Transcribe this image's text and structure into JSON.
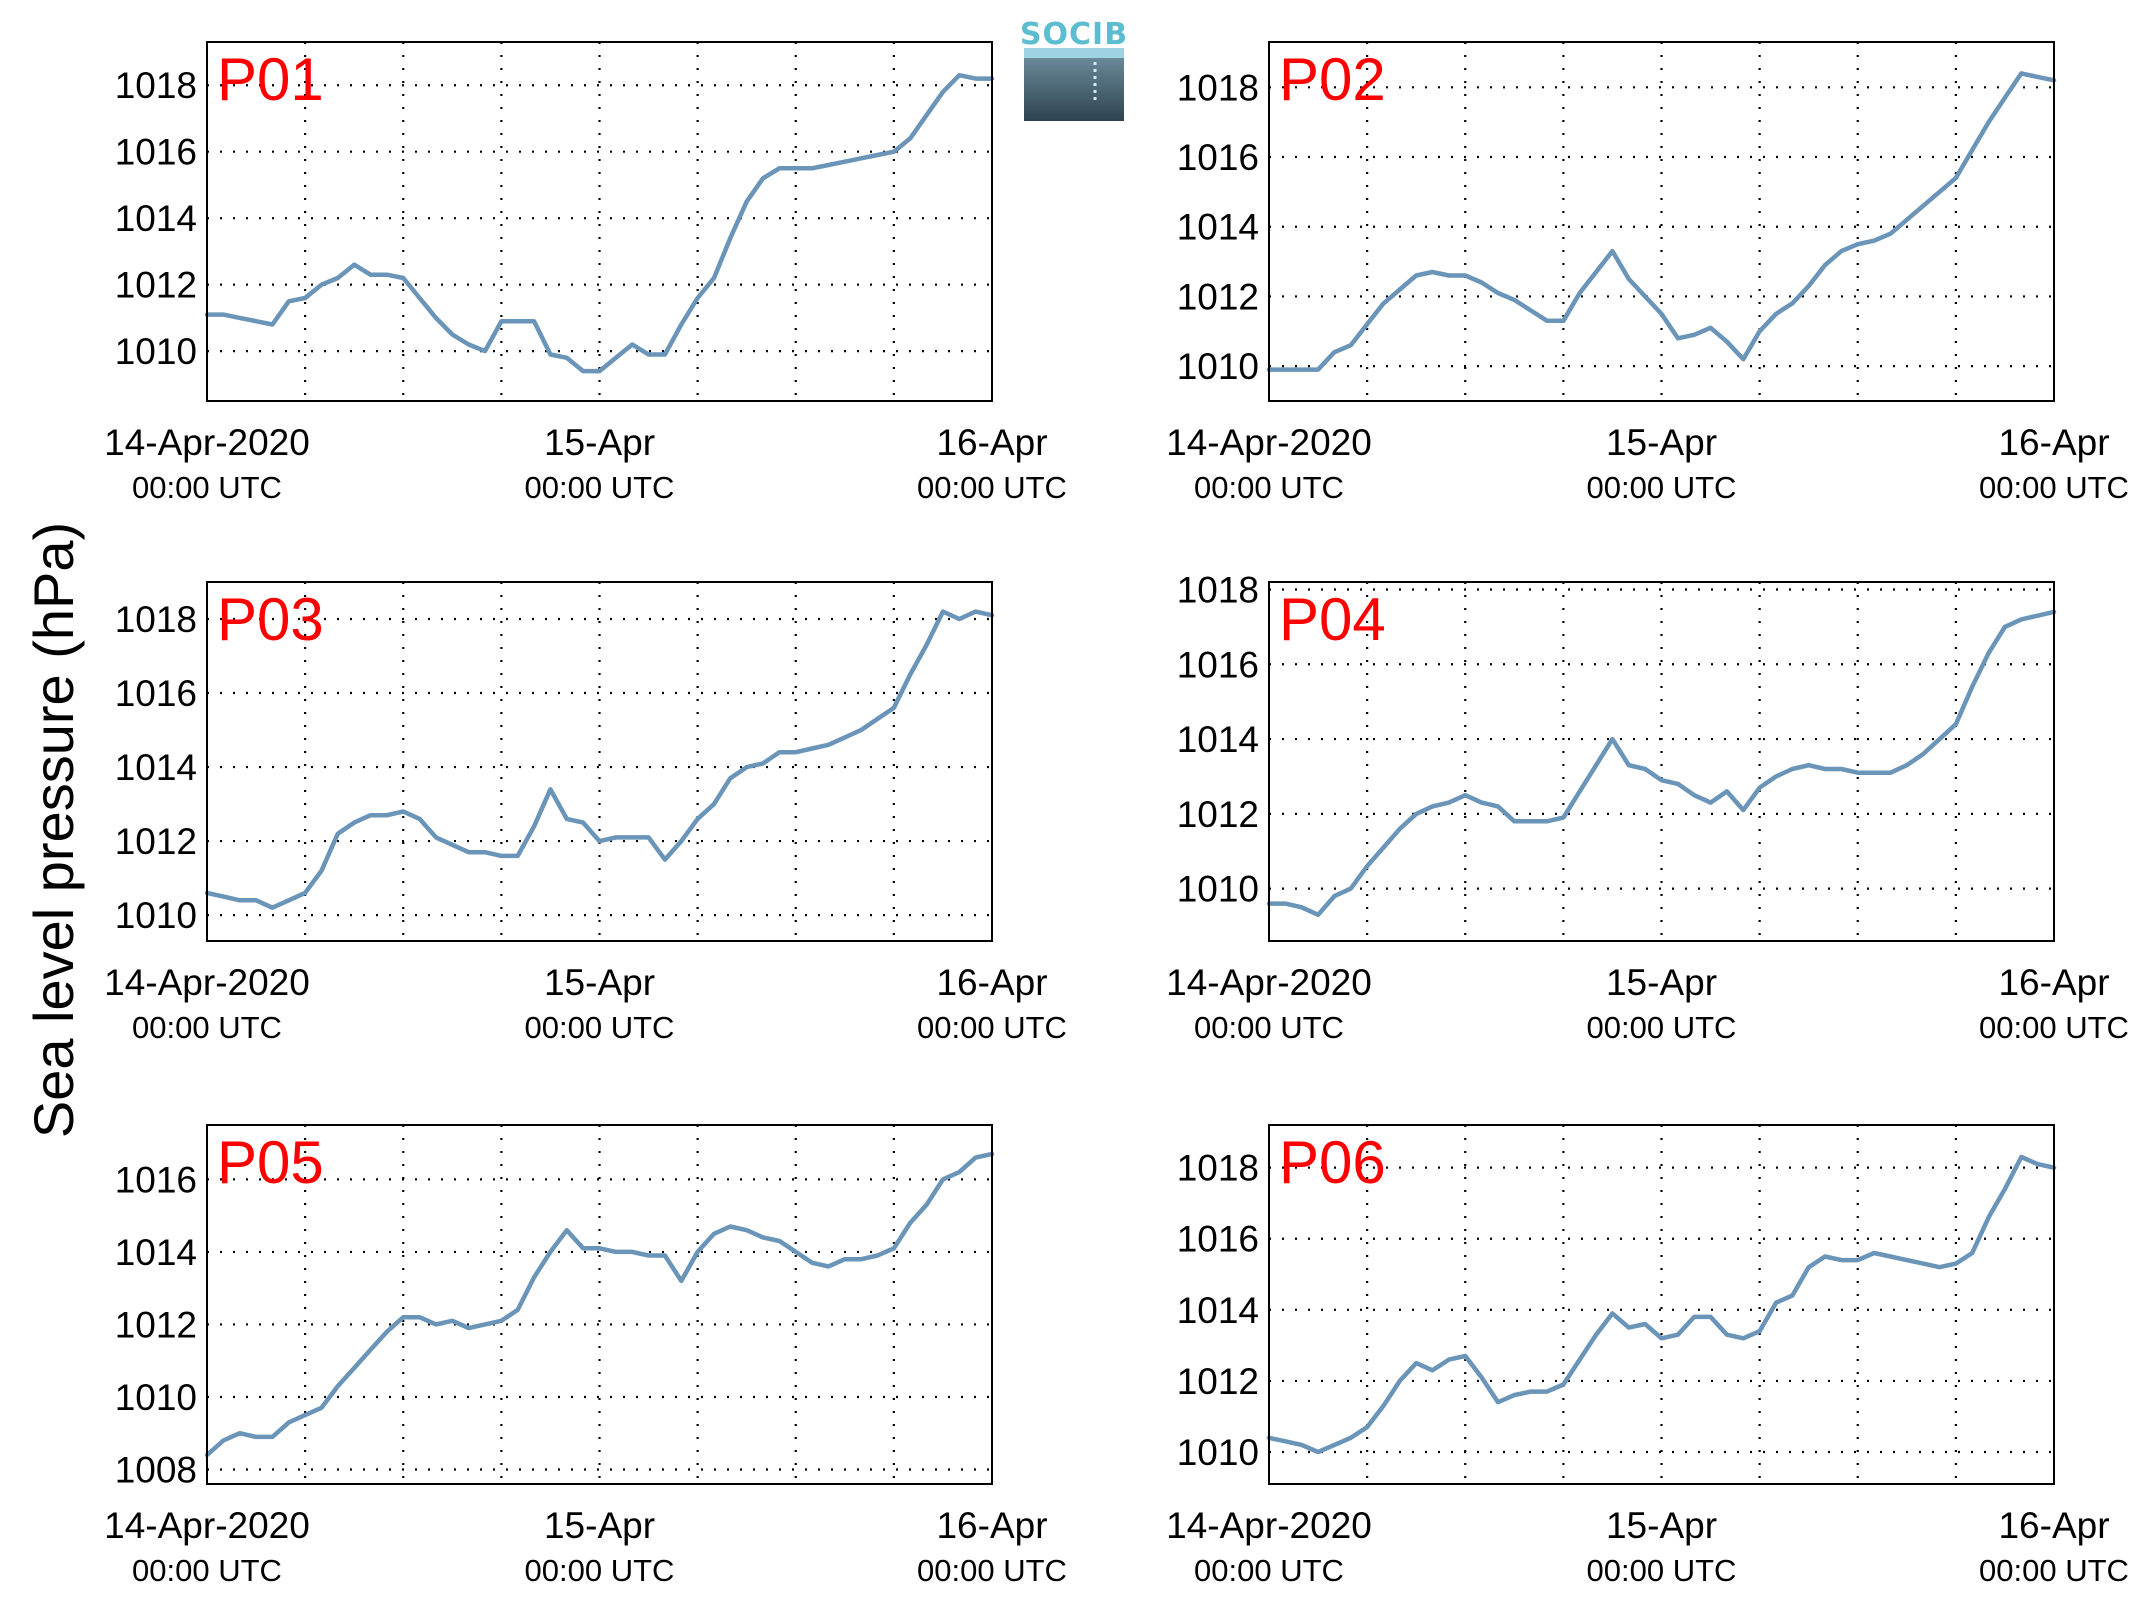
{
  "figure": {
    "ylabel": "Sea level pressure (hPa)",
    "logo_text": "SOCIB",
    "line_color": "#6a94b8",
    "label_color": "#ff0000",
    "logo_color": "#5cbcd0"
  },
  "chart_data": [
    {
      "type": "line",
      "panel": "P01",
      "xlabel_ticks": [
        [
          "14-Apr-2020",
          "00:00 UTC"
        ],
        [
          "15-Apr",
          "00:00 UTC"
        ],
        [
          "16-Apr",
          "00:00 UTC"
        ]
      ],
      "x_unit": "hours since 14-Apr-2020 00:00 UTC",
      "xlim": [
        0,
        48
      ],
      "ylim": [
        1008.5,
        1019.3
      ],
      "yticks": [
        1010,
        1012,
        1014,
        1016,
        1018
      ],
      "grid": true,
      "x": [
        0,
        1,
        2,
        3,
        4,
        5,
        6,
        7,
        8,
        9,
        10,
        11,
        12,
        13,
        14,
        15,
        16,
        17,
        18,
        19,
        20,
        21,
        22,
        23,
        24,
        25,
        26,
        27,
        28,
        29,
        30,
        31,
        32,
        33,
        34,
        35,
        36,
        37,
        38,
        39,
        40,
        41,
        42,
        43,
        44,
        45,
        46,
        47,
        48
      ],
      "y": [
        1011.1,
        1011.1,
        1011.0,
        1010.9,
        1010.8,
        1011.5,
        1011.6,
        1012.0,
        1012.2,
        1012.6,
        1012.3,
        1012.3,
        1012.2,
        1011.6,
        1011.0,
        1010.5,
        1010.2,
        1010.0,
        1010.9,
        1010.9,
        1010.9,
        1009.9,
        1009.8,
        1009.4,
        1009.4,
        1009.8,
        1010.2,
        1009.9,
        1009.9,
        1010.8,
        1011.6,
        1012.2,
        1013.4,
        1014.5,
        1015.2,
        1015.5,
        1015.5,
        1015.5,
        1015.6,
        1015.7,
        1015.8,
        1015.9,
        1016.0,
        1016.4,
        1017.1,
        1017.8,
        1018.3,
        1018.2,
        1018.2
      ]
    },
    {
      "type": "line",
      "panel": "P02",
      "xlabel_ticks": [
        [
          "14-Apr-2020",
          "00:00 UTC"
        ],
        [
          "15-Apr",
          "00:00 UTC"
        ],
        [
          "16-Apr",
          "00:00 UTC"
        ]
      ],
      "x_unit": "hours since 14-Apr-2020 00:00 UTC",
      "xlim": [
        0,
        48
      ],
      "ylim": [
        1009.0,
        1019.3
      ],
      "yticks": [
        1010,
        1012,
        1014,
        1016,
        1018
      ],
      "grid": true,
      "x": [
        0,
        1,
        2,
        3,
        4,
        5,
        6,
        7,
        8,
        9,
        10,
        11,
        12,
        13,
        14,
        15,
        16,
        17,
        18,
        19,
        20,
        21,
        22,
        23,
        24,
        25,
        26,
        27,
        28,
        29,
        30,
        31,
        32,
        33,
        34,
        35,
        36,
        37,
        38,
        39,
        40,
        41,
        42,
        43,
        44,
        45,
        46,
        47,
        48
      ],
      "y": [
        1009.9,
        1009.9,
        1009.9,
        1009.9,
        1010.4,
        1010.6,
        1011.2,
        1011.8,
        1012.2,
        1012.6,
        1012.7,
        1012.6,
        1012.6,
        1012.4,
        1012.1,
        1011.9,
        1011.6,
        1011.3,
        1011.3,
        1012.1,
        1012.7,
        1013.3,
        1012.5,
        1012.0,
        1011.5,
        1010.8,
        1010.9,
        1011.1,
        1010.7,
        1010.2,
        1011.0,
        1011.5,
        1011.8,
        1012.3,
        1012.9,
        1013.3,
        1013.5,
        1013.6,
        1013.8,
        1014.2,
        1014.6,
        1015.0,
        1015.4,
        1016.2,
        1017.0,
        1017.7,
        1018.4,
        1018.3,
        1018.2
      ]
    },
    {
      "type": "line",
      "panel": "P03",
      "xlabel_ticks": [
        [
          "14-Apr-2020",
          "00:00 UTC"
        ],
        [
          "15-Apr",
          "00:00 UTC"
        ],
        [
          "16-Apr",
          "00:00 UTC"
        ]
      ],
      "x_unit": "hours since 14-Apr-2020 00:00 UTC",
      "xlim": [
        0,
        48
      ],
      "ylim": [
        1009.3,
        1019.0
      ],
      "yticks": [
        1010,
        1012,
        1014,
        1016,
        1018
      ],
      "grid": true,
      "x": [
        0,
        1,
        2,
        3,
        4,
        5,
        6,
        7,
        8,
        9,
        10,
        11,
        12,
        13,
        14,
        15,
        16,
        17,
        18,
        19,
        20,
        21,
        22,
        23,
        24,
        25,
        26,
        27,
        28,
        29,
        30,
        31,
        32,
        33,
        34,
        35,
        36,
        37,
        38,
        39,
        40,
        41,
        42,
        43,
        44,
        45,
        46,
        47,
        48
      ],
      "y": [
        1010.6,
        1010.5,
        1010.4,
        1010.4,
        1010.2,
        1010.4,
        1010.6,
        1011.2,
        1012.2,
        1012.5,
        1012.7,
        1012.7,
        1012.8,
        1012.6,
        1012.1,
        1011.9,
        1011.7,
        1011.7,
        1011.6,
        1011.6,
        1012.4,
        1013.4,
        1012.6,
        1012.5,
        1012.0,
        1012.1,
        1012.1,
        1012.1,
        1011.5,
        1012.0,
        1012.6,
        1013.0,
        1013.7,
        1014.0,
        1014.1,
        1014.4,
        1014.4,
        1014.5,
        1014.6,
        1014.8,
        1015.0,
        1015.3,
        1015.6,
        1016.5,
        1017.3,
        1018.2,
        1018.0,
        1018.2,
        1018.1
      ]
    },
    {
      "type": "line",
      "panel": "P04",
      "xlabel_ticks": [
        [
          "14-Apr-2020",
          "00:00 UTC"
        ],
        [
          "15-Apr",
          "00:00 UTC"
        ],
        [
          "16-Apr",
          "00:00 UTC"
        ]
      ],
      "x_unit": "hours since 14-Apr-2020 00:00 UTC",
      "xlim": [
        0,
        48
      ],
      "ylim": [
        1008.6,
        1018.2
      ],
      "yticks": [
        1010,
        1012,
        1014,
        1016,
        1018
      ],
      "grid": true,
      "x": [
        0,
        1,
        2,
        3,
        4,
        5,
        6,
        7,
        8,
        9,
        10,
        11,
        12,
        13,
        14,
        15,
        16,
        17,
        18,
        19,
        20,
        21,
        22,
        23,
        24,
        25,
        26,
        27,
        28,
        29,
        30,
        31,
        32,
        33,
        34,
        35,
        36,
        37,
        38,
        39,
        40,
        41,
        42,
        43,
        44,
        45,
        46,
        47,
        48
      ],
      "y": [
        1009.6,
        1009.6,
        1009.5,
        1009.3,
        1009.8,
        1010.0,
        1010.6,
        1011.1,
        1011.6,
        1012.0,
        1012.2,
        1012.3,
        1012.5,
        1012.3,
        1012.2,
        1011.8,
        1011.8,
        1011.8,
        1011.9,
        1012.6,
        1013.3,
        1014.0,
        1013.3,
        1013.2,
        1012.9,
        1012.8,
        1012.5,
        1012.3,
        1012.6,
        1012.1,
        1012.7,
        1013.0,
        1013.2,
        1013.3,
        1013.2,
        1013.2,
        1013.1,
        1013.1,
        1013.1,
        1013.3,
        1013.6,
        1014.0,
        1014.4,
        1015.4,
        1016.3,
        1017.0,
        1017.2,
        1017.3,
        1017.4
      ]
    },
    {
      "type": "line",
      "panel": "P05",
      "xlabel_ticks": [
        [
          "14-Apr-2020",
          "00:00 UTC"
        ],
        [
          "15-Apr",
          "00:00 UTC"
        ],
        [
          "16-Apr",
          "00:00 UTC"
        ]
      ],
      "x_unit": "hours since 14-Apr-2020 00:00 UTC",
      "xlim": [
        0,
        48
      ],
      "ylim": [
        1007.6,
        1017.5
      ],
      "yticks": [
        1008,
        1010,
        1012,
        1014,
        1016
      ],
      "grid": true,
      "x": [
        0,
        1,
        2,
        3,
        4,
        5,
        6,
        7,
        8,
        9,
        10,
        11,
        12,
        13,
        14,
        15,
        16,
        17,
        18,
        19,
        20,
        21,
        22,
        23,
        24,
        25,
        26,
        27,
        28,
        29,
        30,
        31,
        32,
        33,
        34,
        35,
        36,
        37,
        38,
        39,
        40,
        41,
        42,
        43,
        44,
        45,
        46,
        47,
        48
      ],
      "y": [
        1008.4,
        1008.8,
        1009.0,
        1008.9,
        1008.9,
        1009.3,
        1009.5,
        1009.7,
        1010.3,
        1010.8,
        1011.3,
        1011.8,
        1012.2,
        1012.2,
        1012.0,
        1012.1,
        1011.9,
        1012.0,
        1012.1,
        1012.4,
        1013.3,
        1014.0,
        1014.6,
        1014.1,
        1014.1,
        1014.0,
        1014.0,
        1013.9,
        1013.9,
        1013.2,
        1014.0,
        1014.5,
        1014.7,
        1014.6,
        1014.4,
        1014.3,
        1014.0,
        1013.7,
        1013.6,
        1013.8,
        1013.8,
        1013.9,
        1014.1,
        1014.8,
        1015.3,
        1016.0,
        1016.2,
        1016.6,
        1016.7
      ]
    },
    {
      "type": "line",
      "panel": "P06",
      "xlabel_ticks": [
        [
          "14-Apr-2020",
          "00:00 UTC"
        ],
        [
          "15-Apr",
          "00:00 UTC"
        ],
        [
          "16-Apr",
          "00:00 UTC"
        ]
      ],
      "x_unit": "hours since 14-Apr-2020 00:00 UTC",
      "xlim": [
        0,
        48
      ],
      "ylim": [
        1009.1,
        1019.2
      ],
      "yticks": [
        1010,
        1012,
        1014,
        1016,
        1018
      ],
      "grid": true,
      "x": [
        0,
        1,
        2,
        3,
        4,
        5,
        6,
        7,
        8,
        9,
        10,
        11,
        12,
        13,
        14,
        15,
        16,
        17,
        18,
        19,
        20,
        21,
        22,
        23,
        24,
        25,
        26,
        27,
        28,
        29,
        30,
        31,
        32,
        33,
        34,
        35,
        36,
        37,
        38,
        39,
        40,
        41,
        42,
        43,
        44,
        45,
        46,
        47,
        48
      ],
      "y": [
        1010.4,
        1010.3,
        1010.2,
        1010.0,
        1010.2,
        1010.4,
        1010.7,
        1011.3,
        1012.0,
        1012.5,
        1012.3,
        1012.6,
        1012.7,
        1012.1,
        1011.4,
        1011.6,
        1011.7,
        1011.7,
        1011.9,
        1012.6,
        1013.3,
        1013.9,
        1013.5,
        1013.6,
        1013.2,
        1013.3,
        1013.8,
        1013.8,
        1013.3,
        1013.2,
        1013.4,
        1014.2,
        1014.4,
        1015.2,
        1015.5,
        1015.4,
        1015.4,
        1015.6,
        1015.5,
        1015.4,
        1015.3,
        1015.2,
        1015.3,
        1015.6,
        1016.6,
        1017.4,
        1018.3,
        1018.1,
        1018.0
      ]
    }
  ]
}
